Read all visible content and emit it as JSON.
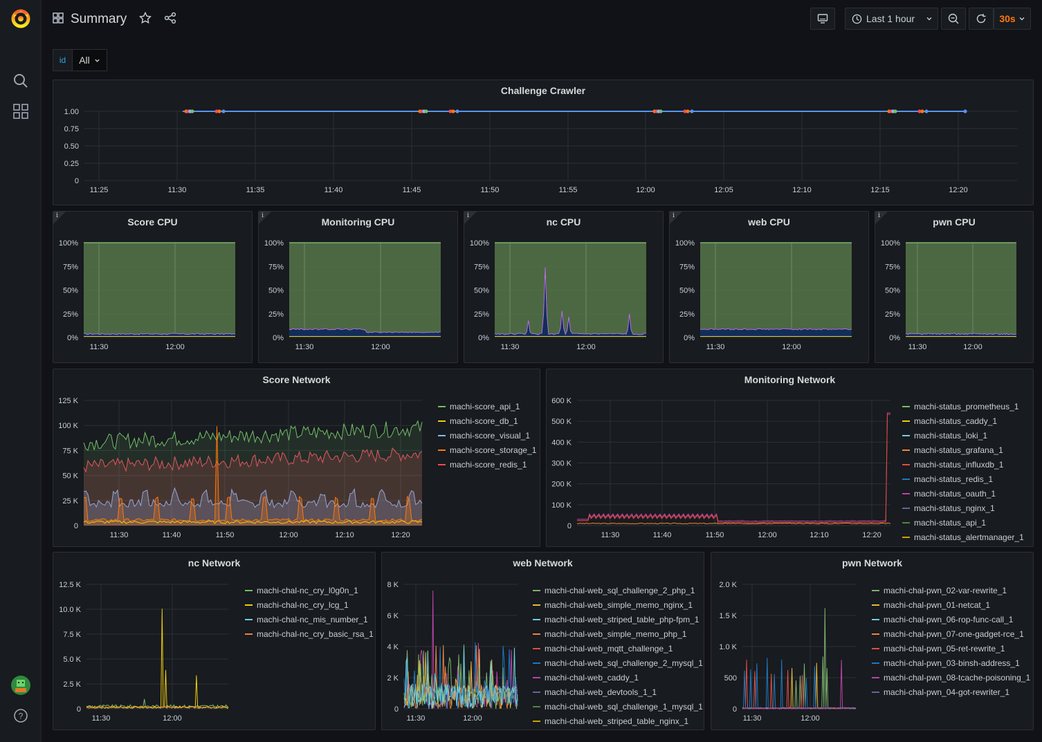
{
  "dashboard": {
    "title": "Summary"
  },
  "toolbar": {
    "time_range": "Last 1 hour",
    "refresh_interval": "30s"
  },
  "variables": [
    {
      "label": "id",
      "value": "All"
    }
  ],
  "colors": {
    "accent": "#ff780a",
    "panel_bg": "#181b1f",
    "page_bg": "#111217",
    "border": "#2c2f36",
    "blue_link": "#33a2e5",
    "cpu_fill": "#56754a"
  },
  "panels": {
    "crawler": {
      "title": "Challenge Crawler",
      "y_ticks": [
        "1.00",
        "0.75",
        "0.50",
        "0.25",
        "0"
      ],
      "x_ticks": [
        "11:25",
        "11:30",
        "11:35",
        "11:40",
        "11:45",
        "11:50",
        "11:55",
        "12:00",
        "12:05",
        "12:10",
        "12:15",
        "12:20"
      ]
    },
    "cpu_y_ticks": [
      "100%",
      "75%",
      "50%",
      "25%",
      "0%"
    ],
    "cpu_x_ticks": [
      "11:30",
      "12:00"
    ],
    "cpu": [
      {
        "title": "Score CPU"
      },
      {
        "title": "Monitoring CPU"
      },
      {
        "title": "nc CPU"
      },
      {
        "title": "web CPU"
      },
      {
        "title": "pwn CPU"
      }
    ],
    "score_network": {
      "title": "Score Network",
      "y_ticks": [
        "125 K",
        "100 K",
        "75 K",
        "50 K",
        "25 K",
        "0"
      ],
      "x_ticks": [
        "11:30",
        "11:40",
        "11:50",
        "12:00",
        "12:10",
        "12:20"
      ],
      "legend": [
        "machi-score_api_1",
        "machi-score_db_1",
        "machi-score_visual_1",
        "machi-score_storage_1",
        "machi-score_redis_1"
      ]
    },
    "monitoring_network": {
      "title": "Monitoring Network",
      "y_ticks": [
        "600 K",
        "500 K",
        "400 K",
        "300 K",
        "200 K",
        "100 K",
        "0"
      ],
      "x_ticks": [
        "11:30",
        "11:40",
        "11:50",
        "12:00",
        "12:10",
        "12:20"
      ],
      "legend": [
        "machi-status_prometheus_1",
        "machi-status_caddy_1",
        "machi-status_loki_1",
        "machi-status_grafana_1",
        "machi-status_influxdb_1",
        "machi-status_redis_1",
        "machi-status_oauth_1",
        "machi-status_nginx_1",
        "machi-status_api_1",
        "machi-status_alertmanager_1"
      ]
    },
    "nc_network": {
      "title": "nc Network",
      "y_ticks": [
        "12.5 K",
        "10.0 K",
        "7.5 K",
        "5.0 K",
        "2.5 K",
        "0"
      ],
      "x_ticks": [
        "11:30",
        "12:00"
      ],
      "legend": [
        "machi-chal-nc_cry_l0g0n_1",
        "machi-chal-nc_cry_lcg_1",
        "machi-chal-nc_mis_number_1",
        "machi-chal-nc_cry_basic_rsa_1"
      ]
    },
    "web_network": {
      "title": "web Network",
      "y_ticks": [
        "8 K",
        "6 K",
        "4 K",
        "2 K",
        "0"
      ],
      "x_ticks": [
        "11:30",
        "12:00"
      ],
      "legend": [
        "machi-chal-web_sql_challenge_2_php_1",
        "machi-chal-web_simple_memo_nginx_1",
        "machi-chal-web_striped_table_php-fpm_1",
        "machi-chal-web_simple_memo_php_1",
        "machi-chal-web_mqtt_challenge_1",
        "machi-chal-web_sql_challenge_2_mysql_1",
        "machi-chal-web_caddy_1",
        "machi-chal-web_devtools_1_1",
        "machi-chal-web_sql_challenge_1_mysql_1",
        "machi-chal-web_striped_table_nginx_1"
      ]
    },
    "pwn_network": {
      "title": "pwn Network",
      "y_ticks": [
        "2.0 K",
        "1.5 K",
        "1.0 K",
        "500",
        "0"
      ],
      "x_ticks": [
        "11:30",
        "12:00"
      ],
      "legend": [
        "machi-chal-pwn_02-var-rewrite_1",
        "machi-chal-pwn_01-netcat_1",
        "machi-chal-pwn_06-rop-func-call_1",
        "machi-chal-pwn_07-one-gadget-rce_1",
        "machi-chal-pwn_05-ret-rewrite_1",
        "machi-chal-pwn_03-binsh-address_1",
        "machi-chal-pwn_08-tcache-poisoning_1",
        "machi-chal-pwn_04-got-rewriter_1"
      ]
    }
  },
  "series_colors": [
    "#73bf69",
    "#f2cc0c",
    "#8ab8ff",
    "#ff780a",
    "#f2495c",
    "#5794f2",
    "#b877d9",
    "#705da0",
    "#37872d",
    "#fade2a"
  ],
  "series_colors_score": [
    "#73bf69",
    "#f2cc0c",
    "#8ab8ff",
    "#ff780a",
    "#f2495c"
  ],
  "series_colors_monitor": [
    "#73bf69",
    "#f2cc0c",
    "#6ed0e0",
    "#ef843c",
    "#e24d42",
    "#1f78c1",
    "#ba43a9",
    "#705da0",
    "#508642",
    "#cca300"
  ],
  "series_colors_nc": [
    "#73bf69",
    "#f2cc0c",
    "#6ed0e0",
    "#ef843c"
  ],
  "series_colors_web": [
    "#7eb26d",
    "#eab839",
    "#6ed0e0",
    "#ef843c",
    "#e24d42",
    "#1f78c1",
    "#ba43a9",
    "#705da0",
    "#508642",
    "#cca300"
  ],
  "series_colors_pwn": [
    "#7eb26d",
    "#eab839",
    "#6ed0e0",
    "#ef843c",
    "#e24d42",
    "#1f78c1",
    "#ba43a9",
    "#705da0"
  ]
}
